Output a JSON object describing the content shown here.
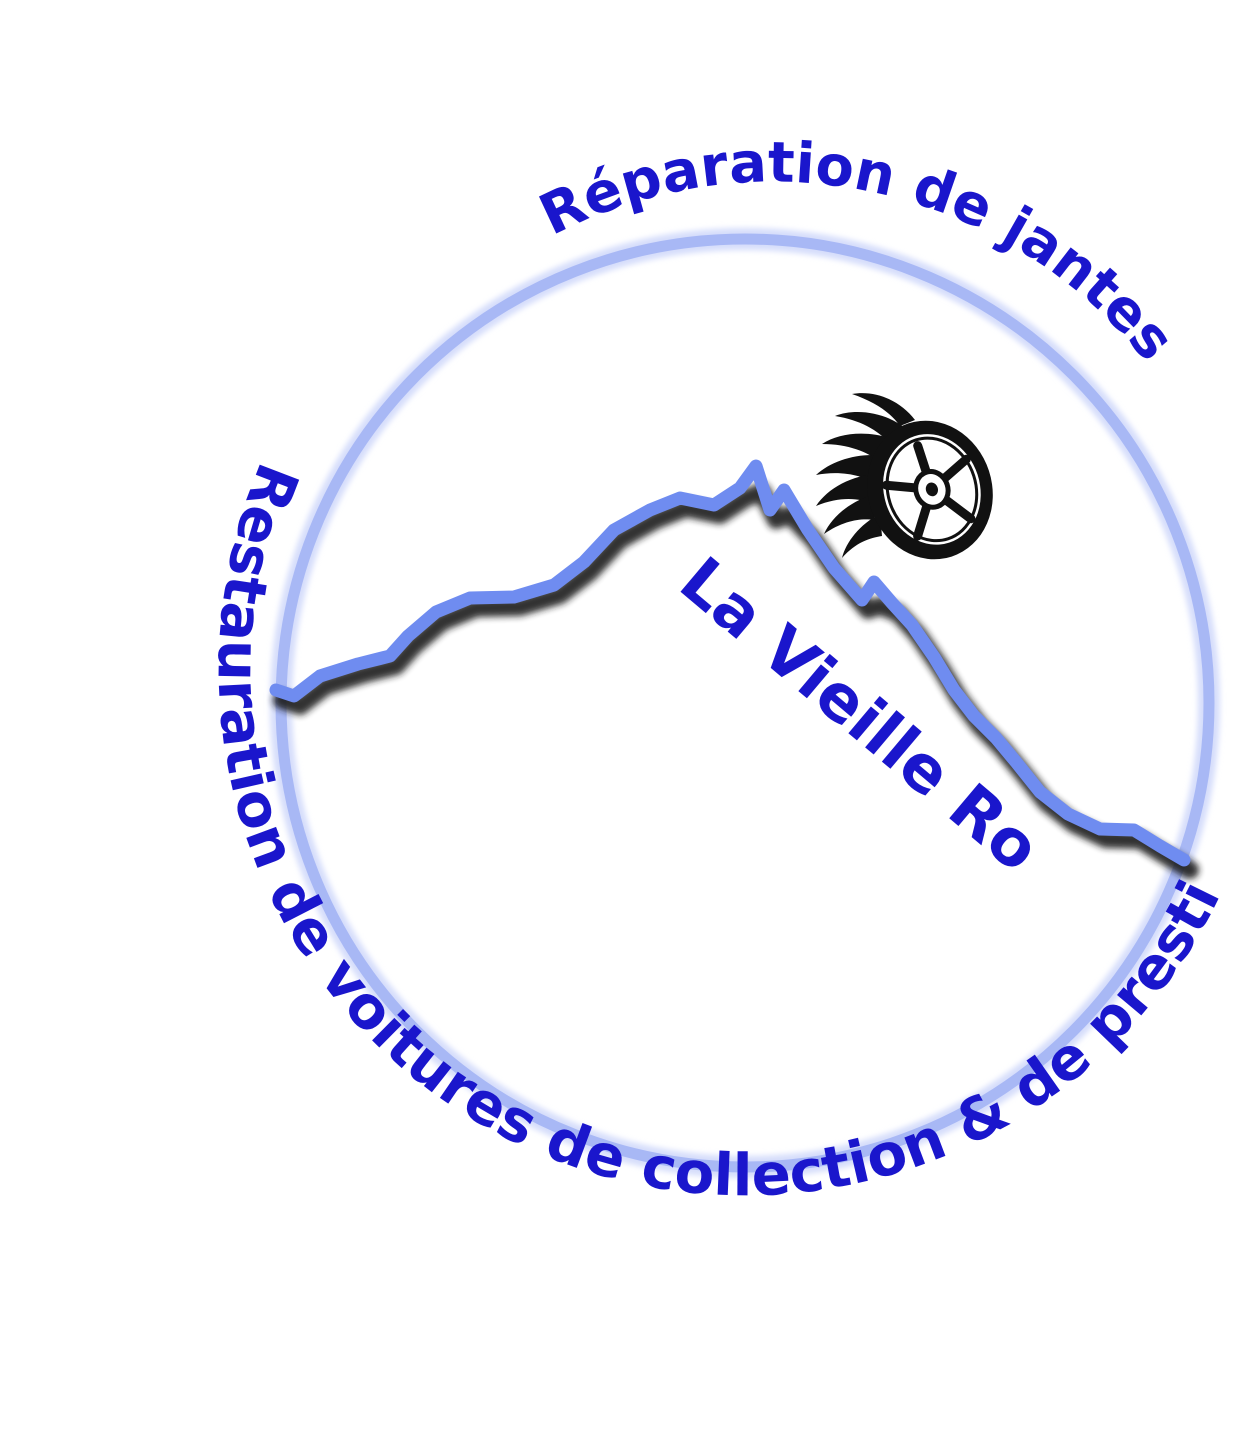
{
  "logo": {
    "top_arc_text": "Réparation de jantes",
    "bottom_arc_text": "Restauration de voitures de collection & de prestige",
    "brand_name": "La Vieille Roue",
    "icons": [
      "mountain-icon",
      "wheel-icon"
    ],
    "colors": {
      "text": "#1a16cc",
      "ring": "#a8b8f5",
      "ring_core": "#8ea2ee",
      "mountain": "#6f8cf0",
      "shadow": "#1a1a1a",
      "wheel": "#111111"
    }
  }
}
